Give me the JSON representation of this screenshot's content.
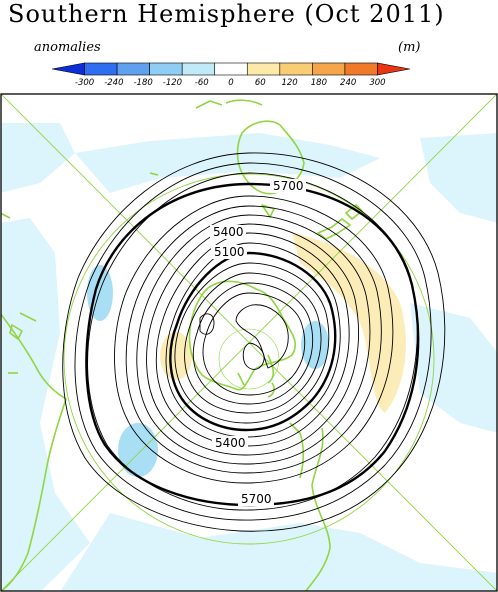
{
  "header": {
    "title": "Southern Hemisphere (Oct 2011)",
    "quantity_label": "anomalies",
    "unit_label": "(m)"
  },
  "colorbar": {
    "ticks": [
      "-300",
      "-240",
      "-180",
      "-120",
      "-60",
      "0",
      "60",
      "120",
      "180",
      "240",
      "300"
    ],
    "colors": [
      "#0a2fd6",
      "#2f6ef0",
      "#5fa0ef",
      "#8fcdf5",
      "#c0eaf8",
      "#ffffff",
      "#fdeaa8",
      "#f8cd73",
      "#f5a64a",
      "#f07a27",
      "#e83512"
    ]
  },
  "map": {
    "coastline_color": "#8fd640",
    "contour_color": "#000000",
    "contour_labels": [
      "5700",
      "5400",
      "5100",
      "5400",
      "5700"
    ]
  }
}
